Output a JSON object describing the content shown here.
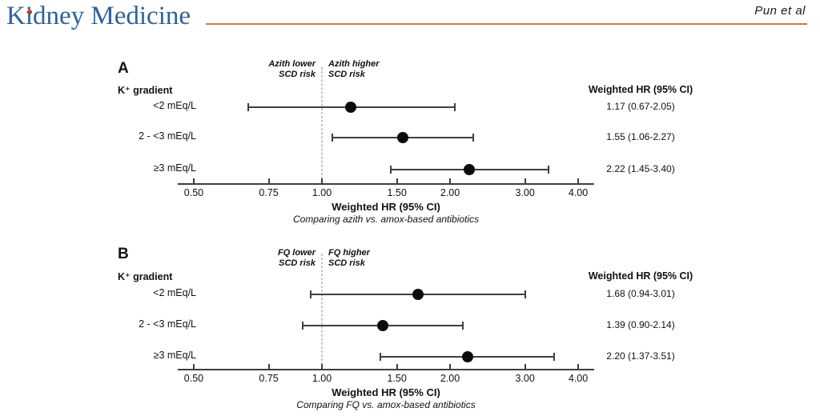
{
  "header": {
    "journal_logo": "Kidney Medicine",
    "attribution": "Pun et al",
    "colors": {
      "logo_blue": "#2d6496",
      "logo_dot": "#b5402a",
      "rule_orange": "#c4764f",
      "plot_ink": "#3f3f3f",
      "point_black": "#0b0b0b"
    }
  },
  "chart_data": [
    {
      "type": "scatter",
      "variant": "forest-plot",
      "panel_label": "A",
      "group_label": "K⁺ gradient",
      "column_header": "Weighted HR (95% CI)",
      "left_annotation": [
        "Azith lower",
        "SCD risk"
      ],
      "right_annotation": [
        "Azith higher",
        "SCD risk"
      ],
      "rows": [
        {
          "label": "<2 mEq/L",
          "hr": 1.17,
          "ci_low": 0.67,
          "ci_high": 2.05,
          "value_text": "1.17 (0.67-2.05)"
        },
        {
          "label": "2 - <3 mEq/L",
          "hr": 1.55,
          "ci_low": 1.06,
          "ci_high": 2.27,
          "value_text": "1.55 (1.06-2.27)"
        },
        {
          "label": "≥3 mEq/L",
          "hr": 2.22,
          "ci_low": 1.45,
          "ci_high": 3.4,
          "value_text": "2.22 (1.45-3.40)"
        }
      ],
      "x_scale": "log",
      "x_ticks": [
        0.5,
        0.75,
        1.0,
        1.5,
        2.0,
        3.0,
        4.0
      ],
      "x_tick_labels": [
        "0.50",
        "0.75",
        "1.00",
        "1.50",
        "2.00",
        "3.00",
        "4.00"
      ],
      "xlim": [
        0.46,
        4.36
      ],
      "reference_line": 1.0,
      "xlabel": "Weighted HR (95% CI)",
      "xlabel_subtitle": "Comparing azith vs. amox-based antibiotics"
    },
    {
      "type": "scatter",
      "variant": "forest-plot",
      "panel_label": "B",
      "group_label": "K⁺ gradient",
      "column_header": "Weighted HR (95% CI)",
      "left_annotation": [
        "FQ lower",
        "SCD risk"
      ],
      "right_annotation": [
        "FQ higher",
        "SCD risk"
      ],
      "rows": [
        {
          "label": "<2 mEq/L",
          "hr": 1.68,
          "ci_low": 0.94,
          "ci_high": 3.01,
          "value_text": "1.68 (0.94-3.01)"
        },
        {
          "label": "2 - <3 mEq/L",
          "hr": 1.39,
          "ci_low": 0.9,
          "ci_high": 2.14,
          "value_text": "1.39 (0.90-2.14)"
        },
        {
          "label": "≥3 mEq/L",
          "hr": 2.2,
          "ci_low": 1.37,
          "ci_high": 3.51,
          "value_text": "2.20 (1.37-3.51)"
        }
      ],
      "x_scale": "log",
      "x_ticks": [
        0.5,
        0.75,
        1.0,
        1.5,
        2.0,
        3.0,
        4.0
      ],
      "x_tick_labels": [
        "0.50",
        "0.75",
        "1.00",
        "1.50",
        "2.00",
        "3.00",
        "4.00"
      ],
      "xlim": [
        0.46,
        4.36
      ],
      "reference_line": 1.0,
      "xlabel": "Weighted HR (95% CI)",
      "xlabel_subtitle": "Comparing FQ vs. amox-based antibiotics"
    }
  ]
}
